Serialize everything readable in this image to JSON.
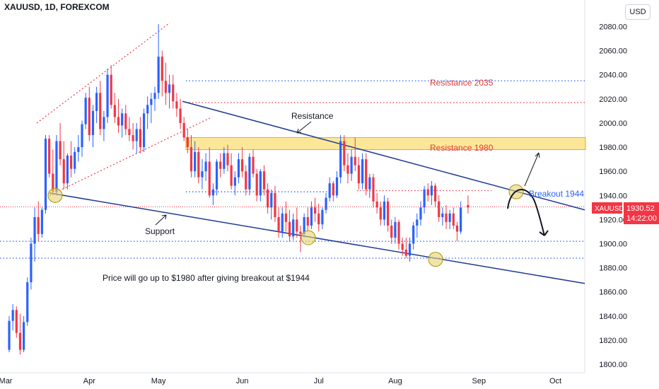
{
  "header": {
    "symbol_title": "XAUUSD, 1D, FOREXCOM"
  },
  "currency_button": "USD",
  "price_tag": {
    "symbol": "XAUUSD",
    "price": "1930.52",
    "countdown": "14:22:00",
    "color": "#f23645"
  },
  "colors": {
    "up": "#2962ff",
    "down": "#f23645",
    "trend": "#1f3a93",
    "zone": "#fbe386",
    "circle": "#e8d270"
  },
  "chart_data": {
    "type": "candlestick",
    "symbol": "XAUUSD",
    "interval": "1D",
    "ylim": [
      1793,
      2102
    ],
    "y_ticks": [
      "1800.00",
      "1820.00",
      "1840.00",
      "1860.00",
      "1880.00",
      "1900.00",
      "1920.00",
      "1940.00",
      "1960.00",
      "1980.00",
      "2000.00",
      "2020.00",
      "2040.00",
      "2060.00",
      "2080.00"
    ],
    "x_ticks": [
      {
        "label": "Mar",
        "index": -1
      },
      {
        "label": "Apr",
        "index": 22
      },
      {
        "label": "May",
        "index": 41
      },
      {
        "label": "Jun",
        "index": 64
      },
      {
        "label": "Jul",
        "index": 85
      },
      {
        "label": "Aug",
        "index": 106
      },
      {
        "label": "Sep",
        "index": 129
      },
      {
        "label": "Oct",
        "index": 150
      }
    ],
    "ohlc": [
      [
        1812,
        1840,
        1810,
        1836
      ],
      [
        1836,
        1850,
        1828,
        1845
      ],
      [
        1845,
        1848,
        1822,
        1826
      ],
      [
        1826,
        1842,
        1808,
        1812
      ],
      [
        1812,
        1840,
        1810,
        1835
      ],
      [
        1835,
        1872,
        1832,
        1868
      ],
      [
        1868,
        1905,
        1862,
        1900
      ],
      [
        1900,
        1930,
        1885,
        1922
      ],
      [
        1922,
        1935,
        1902,
        1908
      ],
      [
        1908,
        1930,
        1905,
        1928
      ],
      [
        1928,
        1990,
        1925,
        1987
      ],
      [
        1987,
        1990,
        1955,
        1958
      ],
      [
        1958,
        1978,
        1940,
        1943
      ],
      [
        1943,
        1990,
        1940,
        1985
      ],
      [
        1985,
        2000,
        1965,
        1970
      ],
      [
        1970,
        1985,
        1945,
        1950
      ],
      [
        1950,
        1975,
        1945,
        1973
      ],
      [
        1973,
        1985,
        1955,
        1962
      ],
      [
        1962,
        1980,
        1958,
        1976
      ],
      [
        1976,
        1990,
        1968,
        1980
      ],
      [
        1980,
        2002,
        1972,
        1999
      ],
      [
        1999,
        2025,
        1995,
        2021
      ],
      [
        2021,
        2030,
        1985,
        1990
      ],
      [
        1990,
        2015,
        1980,
        2010
      ],
      [
        2010,
        2030,
        2000,
        2025
      ],
      [
        2025,
        2035,
        1990,
        1995
      ],
      [
        1995,
        2010,
        1985,
        2005
      ],
      [
        2005,
        2045,
        2000,
        2040
      ],
      [
        2040,
        2048,
        2012,
        2015
      ],
      [
        2015,
        2025,
        2000,
        2005
      ],
      [
        2005,
        2020,
        1992,
        1998
      ],
      [
        1998,
        2012,
        1988,
        2008
      ],
      [
        2008,
        2015,
        1990,
        1995
      ],
      [
        1995,
        2005,
        1985,
        1990
      ],
      [
        1990,
        2000,
        1978,
        1985
      ],
      [
        1985,
        2000,
        1975,
        1995
      ],
      [
        1995,
        2005,
        1975,
        1980
      ],
      [
        1980,
        2012,
        1976,
        2008
      ],
      [
        2008,
        2022,
        1995,
        2015
      ],
      [
        2015,
        2025,
        2000,
        2020
      ],
      [
        2020,
        2030,
        2010,
        2025
      ],
      [
        2025,
        2082,
        2020,
        2055
      ],
      [
        2055,
        2060,
        2022,
        2035
      ],
      [
        2035,
        2050,
        2015,
        2025
      ],
      [
        2025,
        2040,
        2012,
        2032
      ],
      [
        2032,
        2040,
        2012,
        2018
      ],
      [
        2018,
        2025,
        2005,
        2012
      ],
      [
        2012,
        2020,
        1995,
        2000
      ],
      [
        2000,
        2005,
        1985,
        1988
      ],
      [
        1988,
        1995,
        1975,
        1980
      ],
      [
        1980,
        1990,
        1955,
        1960
      ],
      [
        1960,
        1985,
        1955,
        1976
      ],
      [
        1976,
        1980,
        1950,
        1955
      ],
      [
        1955,
        1970,
        1945,
        1960
      ],
      [
        1960,
        1975,
        1952,
        1968
      ],
      [
        1968,
        1980,
        1938,
        1940
      ],
      [
        1940,
        1950,
        1932,
        1945
      ],
      [
        1945,
        1970,
        1940,
        1968
      ],
      [
        1968,
        1975,
        1955,
        1962
      ],
      [
        1962,
        1980,
        1958,
        1975
      ],
      [
        1975,
        1982,
        1960,
        1965
      ],
      [
        1965,
        1975,
        1945,
        1948
      ],
      [
        1948,
        1960,
        1940,
        1955
      ],
      [
        1955,
        1975,
        1950,
        1970
      ],
      [
        1970,
        1980,
        1955,
        1960
      ],
      [
        1960,
        1965,
        1940,
        1945
      ],
      [
        1945,
        1975,
        1940,
        1972
      ],
      [
        1972,
        1978,
        1955,
        1958
      ],
      [
        1958,
        1962,
        1935,
        1940
      ],
      [
        1940,
        1962,
        1935,
        1960
      ],
      [
        1960,
        1965,
        1940,
        1945
      ],
      [
        1945,
        1950,
        1925,
        1930
      ],
      [
        1930,
        1945,
        1920,
        1942
      ],
      [
        1942,
        1948,
        1918,
        1922
      ],
      [
        1922,
        1930,
        1905,
        1910
      ],
      [
        1910,
        1930,
        1905,
        1925
      ],
      [
        1925,
        1935,
        1910,
        1918
      ],
      [
        1918,
        1928,
        1902,
        1906
      ],
      [
        1906,
        1925,
        1903,
        1920
      ],
      [
        1920,
        1930,
        1905,
        1910
      ],
      [
        1910,
        1915,
        1893,
        1908
      ],
      [
        1908,
        1925,
        1905,
        1922
      ],
      [
        1922,
        1930,
        1910,
        1915
      ],
      [
        1915,
        1935,
        1912,
        1930
      ],
      [
        1930,
        1938,
        1918,
        1925
      ],
      [
        1925,
        1933,
        1910,
        1916
      ],
      [
        1916,
        1930,
        1912,
        1928
      ],
      [
        1928,
        1942,
        1925,
        1938
      ],
      [
        1938,
        1955,
        1935,
        1950
      ],
      [
        1950,
        1952,
        1935,
        1940
      ],
      [
        1940,
        1960,
        1938,
        1955
      ],
      [
        1955,
        1990,
        1950,
        1985
      ],
      [
        1985,
        1990,
        1960,
        1965
      ],
      [
        1965,
        1975,
        1950,
        1958
      ],
      [
        1958,
        1978,
        1952,
        1972
      ],
      [
        1972,
        1988,
        1960,
        1965
      ],
      [
        1965,
        1972,
        1945,
        1950
      ],
      [
        1950,
        1975,
        1945,
        1970
      ],
      [
        1970,
        1975,
        1940,
        1945
      ],
      [
        1945,
        1958,
        1938,
        1955
      ],
      [
        1955,
        1958,
        1930,
        1935
      ],
      [
        1935,
        1942,
        1925,
        1930
      ],
      [
        1930,
        1935,
        1915,
        1920
      ],
      [
        1920,
        1940,
        1915,
        1935
      ],
      [
        1935,
        1938,
        1910,
        1915
      ],
      [
        1915,
        1920,
        1900,
        1905
      ],
      [
        1905,
        1922,
        1900,
        1918
      ],
      [
        1918,
        1920,
        1895,
        1900
      ],
      [
        1900,
        1905,
        1890,
        1895
      ],
      [
        1895,
        1905,
        1888,
        1890
      ],
      [
        1890,
        1905,
        1885,
        1900
      ],
      [
        1900,
        1918,
        1895,
        1915
      ],
      [
        1915,
        1925,
        1905,
        1920
      ],
      [
        1920,
        1935,
        1915,
        1930
      ],
      [
        1930,
        1948,
        1925,
        1945
      ],
      [
        1945,
        1950,
        1935,
        1940
      ],
      [
        1940,
        1952,
        1932,
        1948
      ],
      [
        1948,
        1950,
        1930,
        1935
      ],
      [
        1935,
        1940,
        1918,
        1922
      ],
      [
        1922,
        1930,
        1915,
        1925
      ],
      [
        1925,
        1932,
        1912,
        1918
      ],
      [
        1918,
        1928,
        1912,
        1925
      ],
      [
        1925,
        1930,
        1912,
        1915
      ],
      [
        1915,
        1918,
        1902,
        1910
      ],
      [
        1910,
        1935,
        1908,
        1930
      ],
      [
        1930,
        1932
      ],
      [
        1932,
        1940,
        1925,
        1930
      ]
    ],
    "annotations": {
      "title_text": "Price will go up to $1980 after giving breakout at $1944",
      "resistance_label": "Resistance",
      "support_label": "Support",
      "resistance_2035": "Resistance 2035",
      "resistance_1980": "Resistance 1980",
      "breakout_label": "Breakout 1944"
    },
    "levels": {
      "resistance_2035": 2035,
      "resistance_2017": 2017,
      "zone_1980": [
        1978,
        1988
      ],
      "breakout": 1944,
      "support_1902": 1902,
      "support_1888": 1888,
      "last_price": 1930.52
    }
  }
}
